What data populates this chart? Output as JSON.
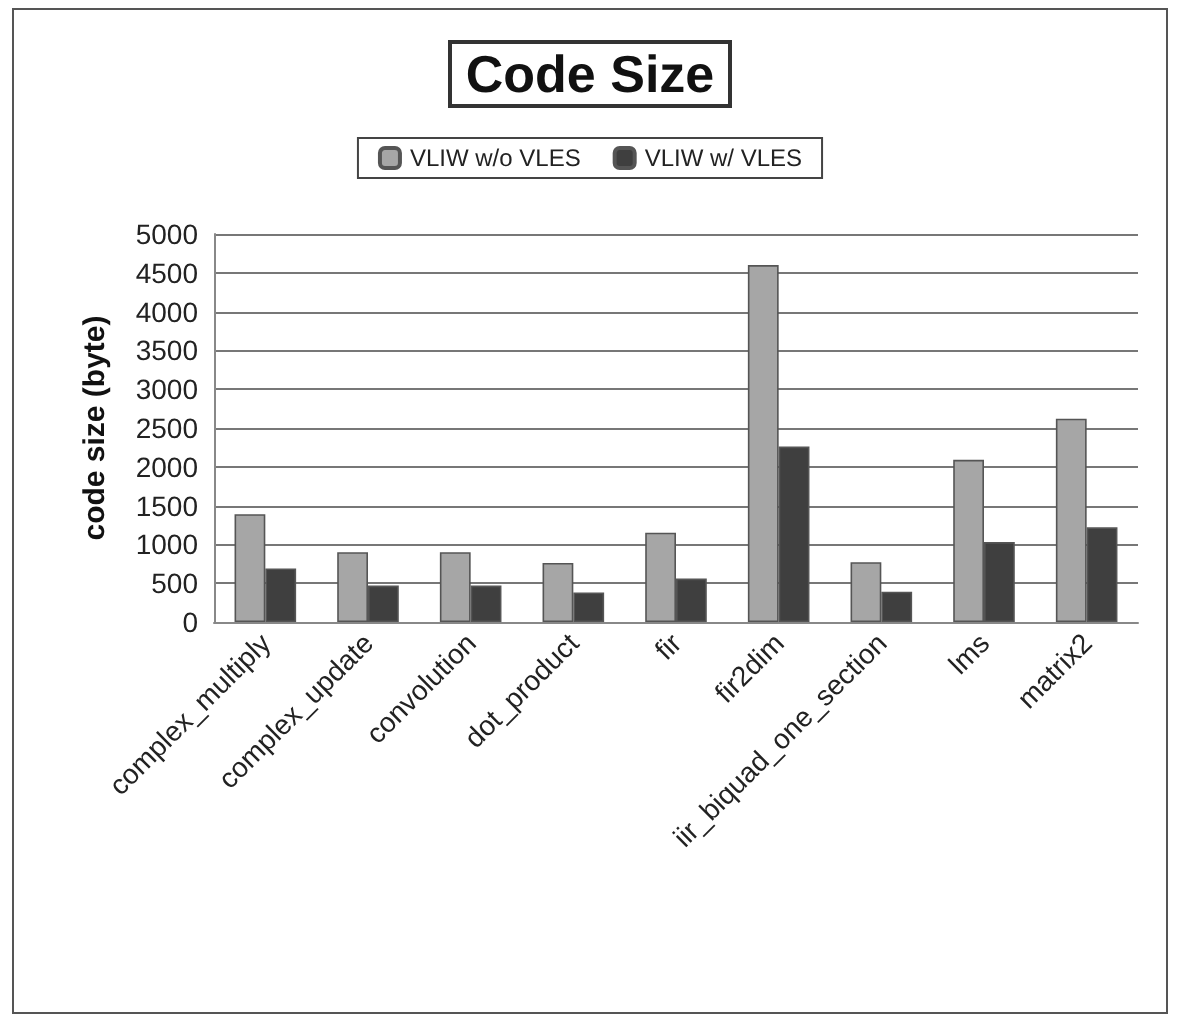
{
  "chart_data": {
    "type": "bar",
    "title": "Code Size",
    "ylabel": "code size (byte)",
    "categories": [
      "complex_multiply",
      "complex_update",
      "convolution",
      "dot_product",
      "fir",
      "fir2dim",
      "iir_biquad_one_section",
      "lms",
      "matrix2"
    ],
    "series": [
      {
        "name": "VLIW w/o VLES",
        "color": "#a6a6a6",
        "values": [
          1390,
          900,
          900,
          760,
          1150,
          4600,
          770,
          2090,
          2620
        ]
      },
      {
        "name": "VLIW w/ VLES",
        "color": "#3f3f3f",
        "values": [
          690,
          470,
          470,
          380,
          560,
          2260,
          390,
          1030,
          1220
        ]
      }
    ],
    "ylim": [
      0,
      5000
    ],
    "yticks": [
      0,
      500,
      1000,
      1500,
      2000,
      2500,
      3000,
      3500,
      4000,
      4500,
      5000
    ],
    "grid": "y",
    "legend": "top"
  }
}
